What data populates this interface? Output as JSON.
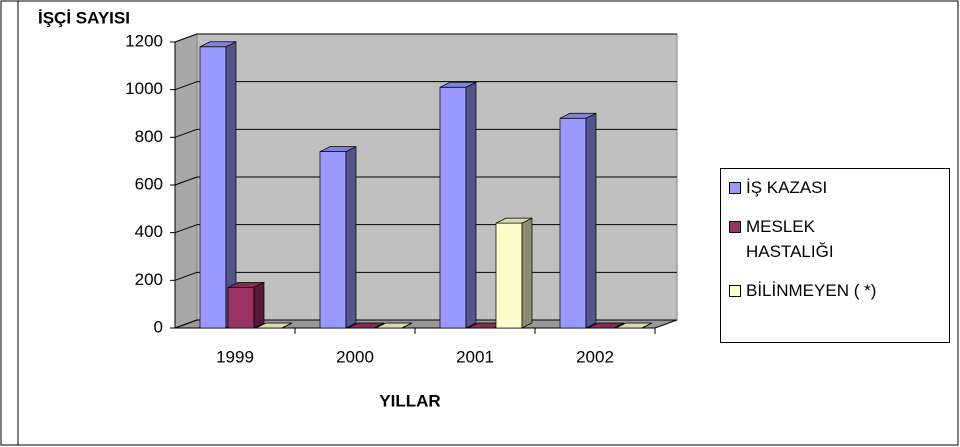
{
  "chart_data": {
    "type": "bar3d",
    "title": "İŞÇİ SAYISI",
    "x_label": "YILLAR",
    "categories": [
      "1999",
      "2000",
      "2001",
      "2002"
    ],
    "series": [
      {
        "name": "İŞ KAZASI",
        "color": "#9999ff",
        "values": [
          1180,
          740,
          1010,
          880
        ]
      },
      {
        "name": "MESLEK HASTALIĞI",
        "color": "#993366",
        "values": [
          170,
          0,
          0,
          0
        ]
      },
      {
        "name": "BİLİNMEYEN ( *)",
        "color": "#ffffcc",
        "values": [
          0,
          0,
          440,
          0
        ]
      }
    ],
    "ylim": [
      0,
      1200
    ],
    "yticks": [
      0,
      200,
      400,
      600,
      800,
      1000,
      1200
    ],
    "grid": true,
    "legend": "right"
  }
}
